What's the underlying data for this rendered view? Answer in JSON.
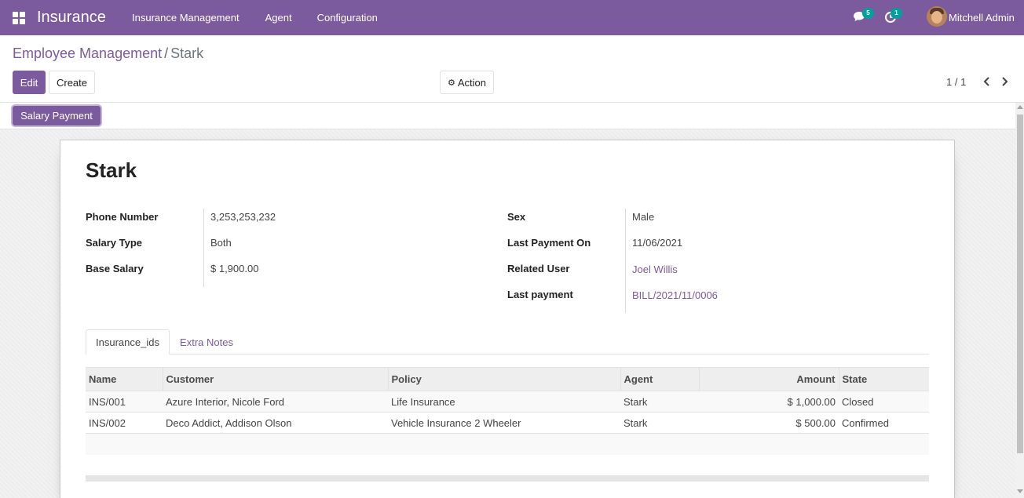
{
  "navbar": {
    "app_name": "Insurance",
    "menu": [
      "Insurance Management",
      "Agent",
      "Configuration"
    ],
    "messages_count": "5",
    "activities_count": "1",
    "user_name": "Mitchell Admin",
    "bg_color": "#7c5a9e"
  },
  "breadcrumb": {
    "parent": "Employee Management",
    "separator": "/",
    "current": "Stark"
  },
  "toolbar": {
    "edit_label": "Edit",
    "create_label": "Create",
    "action_label": "Action",
    "pager_value": "1 / 1"
  },
  "statusbar": {
    "salary_payment_label": "Salary Payment"
  },
  "record": {
    "name": "Stark",
    "left_fields": [
      {
        "label": "Phone Number",
        "value": "3,253,253,232"
      },
      {
        "label": "Salary Type",
        "value": "Both"
      },
      {
        "label": "Base Salary",
        "value": "$ 1,900.00"
      }
    ],
    "right_fields": [
      {
        "label": "Sex",
        "value": "Male"
      },
      {
        "label": "Last Payment On",
        "value": "11/06/2021"
      },
      {
        "label": "Related User",
        "value": "Joel Willis"
      },
      {
        "label": "Last payment",
        "value": "BILL/2021/11/0006"
      }
    ]
  },
  "tabs": [
    "Insurance_ids",
    "Extra Notes"
  ],
  "table": {
    "columns": [
      "Name",
      "Customer",
      "Policy",
      "Agent",
      "Amount",
      "State"
    ],
    "rows": [
      [
        "INS/001",
        "Azure Interior, Nicole Ford",
        "Life Insurance",
        "Stark",
        "$ 1,000.00",
        "Closed"
      ],
      [
        "INS/002",
        "Deco Addict, Addison Olson",
        "Vehicle Insurance 2 Wheeler",
        "Stark",
        "$ 500.00",
        "Confirmed"
      ]
    ]
  }
}
